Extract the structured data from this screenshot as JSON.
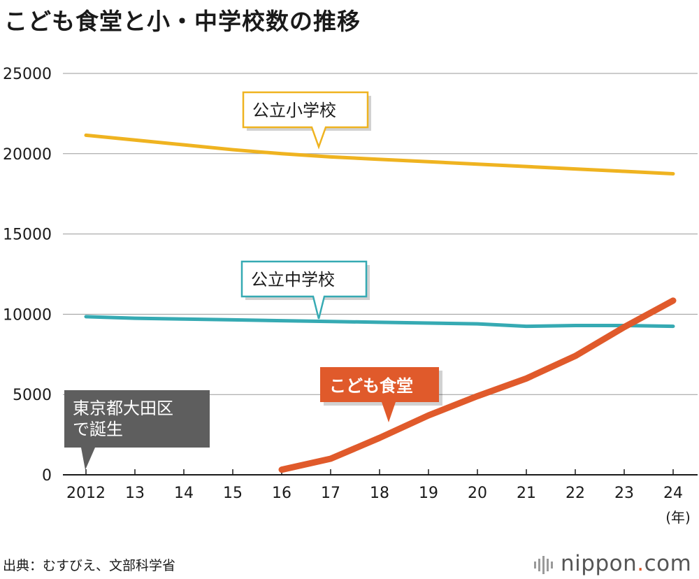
{
  "title": "こども食堂と小・中学校数の推移",
  "source": "出典：むすびえ、文部科学省",
  "logo": {
    "name": "nippon",
    "dot": ".",
    "tld": "com"
  },
  "chart_data": {
    "type": "line",
    "title": "こども食堂と小・中学校数の推移",
    "categories": [
      "2012",
      "13",
      "14",
      "15",
      "16",
      "17",
      "18",
      "19",
      "20",
      "21",
      "22",
      "23",
      "24"
    ],
    "x_unit": "(年)",
    "ylim": [
      0,
      25000
    ],
    "yticks": [
      0,
      5000,
      10000,
      15000,
      20000,
      25000
    ],
    "grid": true,
    "series": [
      {
        "name": "公立小学校",
        "color": "#efb320",
        "values": [
          21150,
          20850,
          20550,
          20250,
          20000,
          19800,
          19650,
          19500,
          19350,
          19200,
          19050,
          18900,
          18750
        ]
      },
      {
        "name": "公立中学校",
        "color": "#36aab3",
        "values": [
          9850,
          9750,
          9700,
          9650,
          9600,
          9550,
          9500,
          9450,
          9400,
          9250,
          9300,
          9300,
          9250
        ]
      },
      {
        "name": "こども食堂",
        "color": "#e05a2b",
        "values": [
          null,
          null,
          null,
          null,
          319,
          1000,
          2300,
          3700,
          4900,
          6000,
          7400,
          9200,
          10850
        ]
      }
    ],
    "annotations": [
      {
        "text": "公立小学校",
        "style": "yellow"
      },
      {
        "text": "公立中学校",
        "style": "teal"
      },
      {
        "text": "こども食堂",
        "style": "orange"
      },
      {
        "text": "東京都大田区\nで誕生",
        "style": "gray"
      }
    ]
  }
}
